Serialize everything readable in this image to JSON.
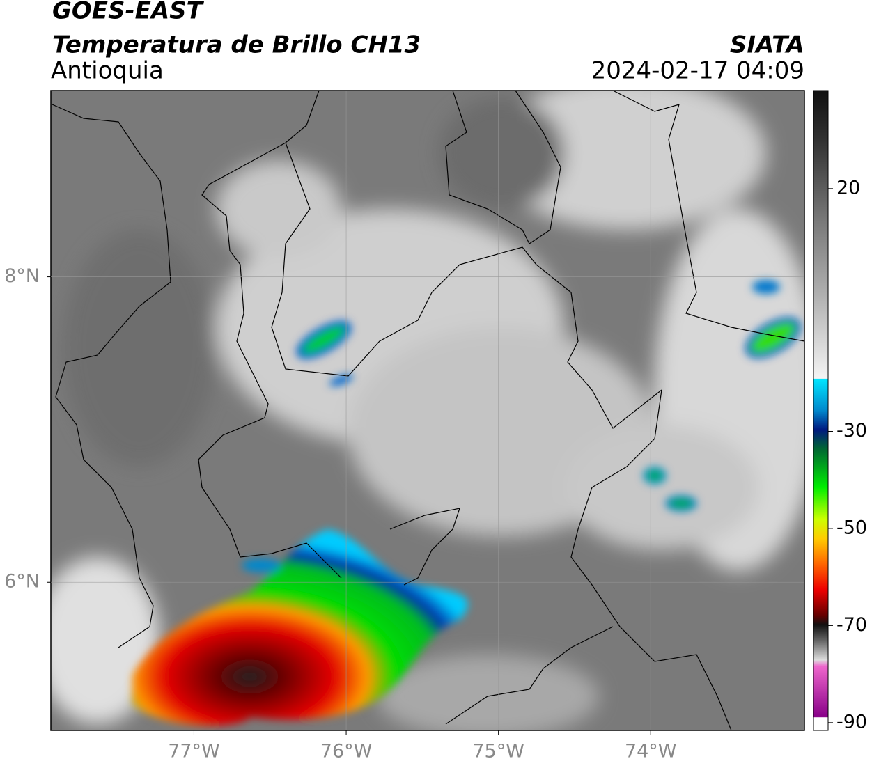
{
  "title": "GOES-EAST",
  "subtitle": "Temperatura de Brillo CH13",
  "region": "Antioquia",
  "source": "SIATA",
  "datetime": "2024-02-17 04:09",
  "map": {
    "xlim": [
      -77.94,
      -72.99
    ],
    "ylim": [
      5.03,
      9.22
    ],
    "xticks": [
      {
        "value": -77,
        "label": "77°W"
      },
      {
        "value": -76,
        "label": "76°W"
      },
      {
        "value": -75,
        "label": "75°W"
      },
      {
        "value": -74,
        "label": "74°W"
      }
    ],
    "yticks": [
      {
        "value": 8,
        "label": "8°N"
      },
      {
        "value": 6,
        "label": "6°N"
      }
    ],
    "grid": true
  },
  "colorbar": {
    "lim": [
      -91.6,
      40.2
    ],
    "ticks": [
      20,
      -30,
      -50,
      -70,
      -90
    ]
  }
}
